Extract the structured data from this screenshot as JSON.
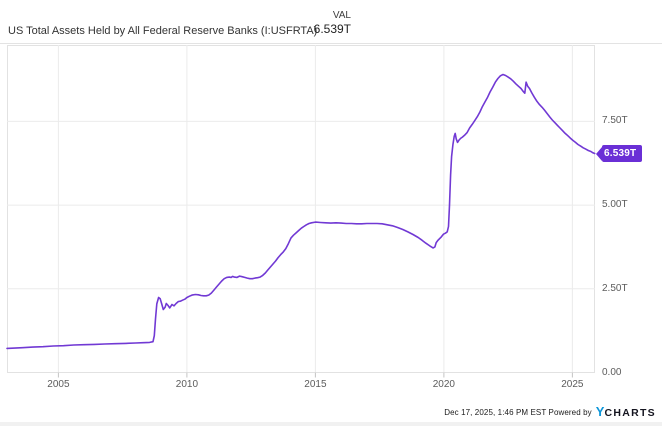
{
  "header": {
    "title": "US Total Assets Held by All Federal Reserve Banks (I:USFRTA)",
    "val_label": "VAL",
    "val_value": "6.539T"
  },
  "badge": {
    "text": "6.539T",
    "color": "#6a2fd6"
  },
  "footer": {
    "timestamp_powered": "Dec 17, 2025, 1:46 PM EST Powered by",
    "brand_y": "Y",
    "brand_rest": "CHARTS",
    "brand_y_color": "#0d96d9",
    "brand_rest_color": "#14141f"
  },
  "chart_data": {
    "type": "line",
    "title": "US Total Assets Held by All Federal Reserve Banks (I:USFRTA)",
    "series_name": "US Total Assets Held by All Federal Reserve Banks",
    "units": "trillions USD",
    "last_value": 6.539,
    "last_value_label": "6.539T",
    "as_of": "Dec 17, 2025, 1:46 PM EST",
    "line_color": "#7139d4",
    "grid_color": "#ebebeb",
    "tick_color": "#c4c4c4",
    "xlim": [
      2003,
      2025.88
    ],
    "ylim": [
      0,
      9.78
    ],
    "grid": true,
    "legend_position": "none",
    "x_ticks": [
      {
        "value": 2005,
        "label": "2005"
      },
      {
        "value": 2010,
        "label": "2010"
      },
      {
        "value": 2015,
        "label": "2015"
      },
      {
        "value": 2020,
        "label": "2020"
      },
      {
        "value": 2025,
        "label": "2025"
      }
    ],
    "y_ticks": [
      {
        "value": 0,
        "label": "0.00"
      },
      {
        "value": 2.5,
        "label": "2.50T"
      },
      {
        "value": 5,
        "label": "5.00T"
      },
      {
        "value": 7.5,
        "label": "7.50T"
      }
    ],
    "points": [
      [
        2003.0,
        0.72
      ],
      [
        2003.3,
        0.73
      ],
      [
        2003.6,
        0.74
      ],
      [
        2004.0,
        0.76
      ],
      [
        2004.4,
        0.77
      ],
      [
        2004.8,
        0.79
      ],
      [
        2005.2,
        0.8
      ],
      [
        2005.6,
        0.82
      ],
      [
        2006.0,
        0.83
      ],
      [
        2006.4,
        0.84
      ],
      [
        2006.8,
        0.85
      ],
      [
        2007.2,
        0.86
      ],
      [
        2007.6,
        0.87
      ],
      [
        2008.0,
        0.88
      ],
      [
        2008.3,
        0.89
      ],
      [
        2008.55,
        0.9
      ],
      [
        2008.68,
        0.92
      ],
      [
        2008.73,
        1.1
      ],
      [
        2008.78,
        1.6
      ],
      [
        2008.83,
        2.05
      ],
      [
        2008.9,
        2.24
      ],
      [
        2008.96,
        2.2
      ],
      [
        2009.02,
        2.05
      ],
      [
        2009.08,
        1.88
      ],
      [
        2009.15,
        1.95
      ],
      [
        2009.2,
        2.06
      ],
      [
        2009.27,
        2.0
      ],
      [
        2009.33,
        1.93
      ],
      [
        2009.42,
        2.03
      ],
      [
        2009.5,
        1.99
      ],
      [
        2009.58,
        2.06
      ],
      [
        2009.67,
        2.12
      ],
      [
        2009.75,
        2.13
      ],
      [
        2009.83,
        2.16
      ],
      [
        2009.92,
        2.19
      ],
      [
        2010.0,
        2.24
      ],
      [
        2010.1,
        2.28
      ],
      [
        2010.2,
        2.31
      ],
      [
        2010.33,
        2.33
      ],
      [
        2010.45,
        2.32
      ],
      [
        2010.55,
        2.3
      ],
      [
        2010.65,
        2.29
      ],
      [
        2010.75,
        2.29
      ],
      [
        2010.85,
        2.31
      ],
      [
        2010.95,
        2.37
      ],
      [
        2011.05,
        2.46
      ],
      [
        2011.15,
        2.55
      ],
      [
        2011.25,
        2.64
      ],
      [
        2011.35,
        2.73
      ],
      [
        2011.45,
        2.8
      ],
      [
        2011.55,
        2.84
      ],
      [
        2011.65,
        2.85
      ],
      [
        2011.72,
        2.84
      ],
      [
        2011.78,
        2.87
      ],
      [
        2011.85,
        2.85
      ],
      [
        2011.95,
        2.84
      ],
      [
        2012.05,
        2.88
      ],
      [
        2012.15,
        2.86
      ],
      [
        2012.25,
        2.84
      ],
      [
        2012.35,
        2.82
      ],
      [
        2012.45,
        2.8
      ],
      [
        2012.55,
        2.8
      ],
      [
        2012.65,
        2.82
      ],
      [
        2012.75,
        2.83
      ],
      [
        2012.85,
        2.85
      ],
      [
        2012.95,
        2.9
      ],
      [
        2013.05,
        2.97
      ],
      [
        2013.15,
        3.06
      ],
      [
        2013.25,
        3.15
      ],
      [
        2013.35,
        3.24
      ],
      [
        2013.45,
        3.33
      ],
      [
        2013.55,
        3.43
      ],
      [
        2013.65,
        3.52
      ],
      [
        2013.75,
        3.6
      ],
      [
        2013.85,
        3.7
      ],
      [
        2013.95,
        3.85
      ],
      [
        2014.05,
        4.02
      ],
      [
        2014.15,
        4.1
      ],
      [
        2014.25,
        4.17
      ],
      [
        2014.35,
        4.24
      ],
      [
        2014.45,
        4.31
      ],
      [
        2014.55,
        4.36
      ],
      [
        2014.65,
        4.41
      ],
      [
        2014.75,
        4.45
      ],
      [
        2014.85,
        4.47
      ],
      [
        2015.0,
        4.49
      ],
      [
        2015.2,
        4.48
      ],
      [
        2015.4,
        4.47
      ],
      [
        2015.6,
        4.46
      ],
      [
        2015.8,
        4.47
      ],
      [
        2016.0,
        4.46
      ],
      [
        2016.2,
        4.45
      ],
      [
        2016.4,
        4.45
      ],
      [
        2016.6,
        4.44
      ],
      [
        2016.8,
        4.44
      ],
      [
        2017.0,
        4.45
      ],
      [
        2017.2,
        4.45
      ],
      [
        2017.4,
        4.45
      ],
      [
        2017.6,
        4.44
      ],
      [
        2017.8,
        4.41
      ],
      [
        2018.0,
        4.38
      ],
      [
        2018.2,
        4.33
      ],
      [
        2018.4,
        4.27
      ],
      [
        2018.6,
        4.2
      ],
      [
        2018.8,
        4.12
      ],
      [
        2019.0,
        4.03
      ],
      [
        2019.15,
        3.95
      ],
      [
        2019.3,
        3.86
      ],
      [
        2019.45,
        3.78
      ],
      [
        2019.58,
        3.72
      ],
      [
        2019.65,
        3.75
      ],
      [
        2019.7,
        3.88
      ],
      [
        2019.76,
        3.94
      ],
      [
        2019.82,
        3.99
      ],
      [
        2019.9,
        4.05
      ],
      [
        2019.98,
        4.13
      ],
      [
        2020.06,
        4.16
      ],
      [
        2020.13,
        4.2
      ],
      [
        2020.18,
        4.36
      ],
      [
        2020.22,
        5.0
      ],
      [
        2020.26,
        5.9
      ],
      [
        2020.3,
        6.45
      ],
      [
        2020.35,
        6.8
      ],
      [
        2020.4,
        7.05
      ],
      [
        2020.44,
        7.14
      ],
      [
        2020.48,
        6.98
      ],
      [
        2020.53,
        6.87
      ],
      [
        2020.58,
        6.93
      ],
      [
        2020.65,
        6.99
      ],
      [
        2020.72,
        7.03
      ],
      [
        2020.8,
        7.08
      ],
      [
        2020.9,
        7.16
      ],
      [
        2021.0,
        7.3
      ],
      [
        2021.1,
        7.41
      ],
      [
        2021.2,
        7.52
      ],
      [
        2021.3,
        7.64
      ],
      [
        2021.4,
        7.78
      ],
      [
        2021.5,
        7.94
      ],
      [
        2021.6,
        8.08
      ],
      [
        2021.7,
        8.22
      ],
      [
        2021.8,
        8.38
      ],
      [
        2021.9,
        8.52
      ],
      [
        2022.0,
        8.67
      ],
      [
        2022.1,
        8.78
      ],
      [
        2022.2,
        8.86
      ],
      [
        2022.3,
        8.9
      ],
      [
        2022.4,
        8.87
      ],
      [
        2022.5,
        8.82
      ],
      [
        2022.6,
        8.77
      ],
      [
        2022.7,
        8.7
      ],
      [
        2022.8,
        8.62
      ],
      [
        2022.9,
        8.55
      ],
      [
        2023.0,
        8.48
      ],
      [
        2023.08,
        8.4
      ],
      [
        2023.15,
        8.34
      ],
      [
        2023.2,
        8.67
      ],
      [
        2023.26,
        8.55
      ],
      [
        2023.33,
        8.48
      ],
      [
        2023.42,
        8.35
      ],
      [
        2023.52,
        8.22
      ],
      [
        2023.62,
        8.1
      ],
      [
        2023.72,
        8.0
      ],
      [
        2023.82,
        7.92
      ],
      [
        2023.92,
        7.83
      ],
      [
        2024.02,
        7.73
      ],
      [
        2024.12,
        7.63
      ],
      [
        2024.22,
        7.54
      ],
      [
        2024.32,
        7.46
      ],
      [
        2024.42,
        7.38
      ],
      [
        2024.52,
        7.3
      ],
      [
        2024.62,
        7.22
      ],
      [
        2024.72,
        7.14
      ],
      [
        2024.82,
        7.07
      ],
      [
        2024.92,
        7.0
      ],
      [
        2025.02,
        6.93
      ],
      [
        2025.12,
        6.87
      ],
      [
        2025.22,
        6.81
      ],
      [
        2025.32,
        6.76
      ],
      [
        2025.42,
        6.71
      ],
      [
        2025.52,
        6.67
      ],
      [
        2025.62,
        6.63
      ],
      [
        2025.72,
        6.6
      ],
      [
        2025.8,
        6.56
      ],
      [
        2025.87,
        6.539
      ]
    ]
  }
}
